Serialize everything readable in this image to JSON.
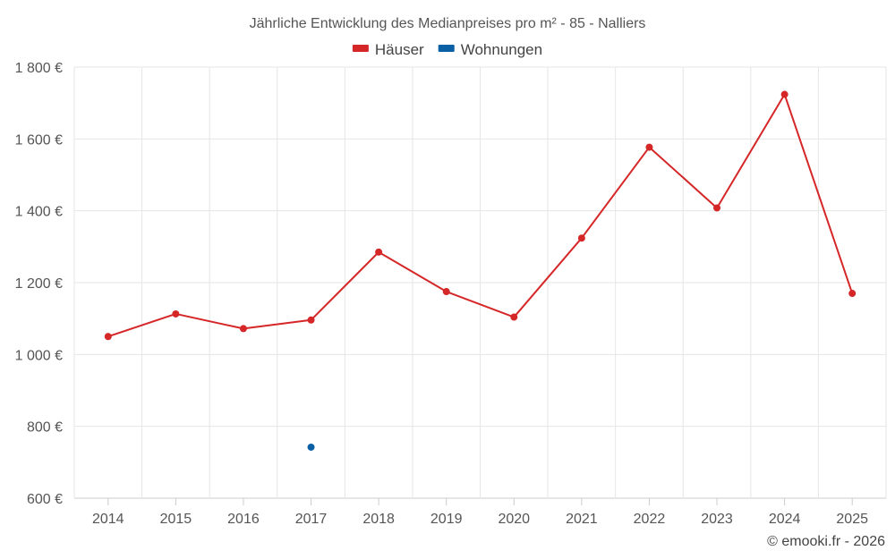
{
  "chart_data": {
    "type": "line",
    "title": "Jährliche Entwicklung des Medianpreises pro m² - 85 - Nalliers",
    "categories": [
      "2014",
      "2015",
      "2016",
      "2017",
      "2018",
      "2019",
      "2020",
      "2021",
      "2022",
      "2023",
      "2024",
      "2025"
    ],
    "y_ticks": [
      600,
      800,
      1000,
      1200,
      1400,
      1600,
      1800
    ],
    "y_tick_labels": [
      "600 €",
      "800 €",
      "1 000 €",
      "1 200 €",
      "1 400 €",
      "1 600 €",
      "1 800 €"
    ],
    "ylim": [
      600,
      1800
    ],
    "grid": true,
    "legend_position": "top-center",
    "series": [
      {
        "name": "Häuser",
        "color": "#d62728",
        "values": [
          1050,
          1113,
          1072,
          1096,
          1285,
          1175,
          1104,
          1324,
          1577,
          1408,
          1724,
          1170
        ]
      },
      {
        "name": "Wohnungen",
        "color": "#0b5fa5",
        "values": [
          null,
          null,
          null,
          742,
          null,
          null,
          null,
          null,
          null,
          null,
          null,
          null
        ]
      }
    ]
  },
  "credit": "© emooki.fr - 2026"
}
